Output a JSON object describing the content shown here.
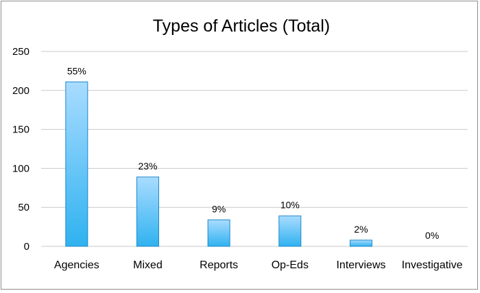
{
  "chart_data": {
    "type": "bar",
    "title": "Types of Articles (Total)",
    "xlabel": "",
    "ylabel": "",
    "categories": [
      "Agencies",
      "Mixed",
      "Reports",
      "Op-Eds",
      "Interviews",
      "Investigative"
    ],
    "values": [
      211,
      89,
      34,
      39,
      8,
      0
    ],
    "data_labels": [
      "55%",
      "23%",
      "9%",
      "10%",
      "2%",
      "0%"
    ],
    "ylim": [
      0,
      250
    ],
    "yticks": [
      0,
      50,
      100,
      150,
      200,
      250
    ],
    "grid": true,
    "legend": "none",
    "colors": {
      "bar_top": "#a9dcff",
      "bar_bottom": "#2fb2f0",
      "bar_stroke": "#1f86c9",
      "grid": "#c8c8c8"
    }
  }
}
